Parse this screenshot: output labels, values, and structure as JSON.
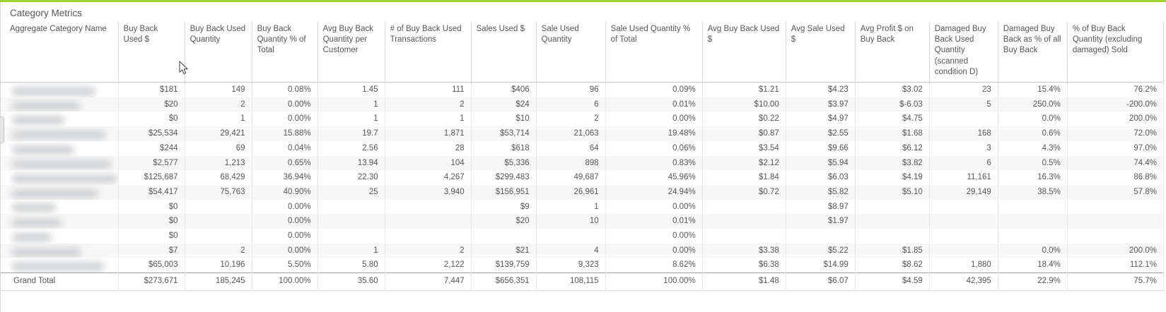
{
  "panel": {
    "title": "Category Metrics",
    "accent_color": "#9cd230"
  },
  "table": {
    "first_column_redacted": true,
    "columns": [
      "Aggregate Category Name",
      "Buy Back Used $",
      "Buy Back Used Quantity",
      "Buy Back Quantity % of Total",
      "Avg Buy Back Quantity per Customer",
      "# of Buy Back Used Transactions",
      "Sales Used $",
      "Sale Used Quantity",
      "Sale Used Quantity % of Total",
      "Avg Buy Back Used $",
      "Avg Sale Used $",
      "Avg Profit $ on Buy Back",
      "Damaged Buy Back Used Quantity (scanned condition D)",
      "Damaged Buy Back as % of all Buy Back",
      "% of Buy Back Quantity (excluding damaged) Sold"
    ],
    "rows": [
      [
        "$181",
        "149",
        "0.08%",
        "1.45",
        "111",
        "$406",
        "96",
        "0.09%",
        "$1.21",
        "$4.23",
        "$3.02",
        "23",
        "15.4%",
        "76.2%"
      ],
      [
        "$20",
        "2",
        "0.00%",
        "1",
        "2",
        "$24",
        "6",
        "0.01%",
        "$10.00",
        "$3.97",
        "$-6.03",
        "5",
        "250.0%",
        "-200.0%"
      ],
      [
        "$0",
        "1",
        "0.00%",
        "1",
        "1",
        "$10",
        "2",
        "0.00%",
        "$0.22",
        "$4.97",
        "$4.75",
        "",
        "0.0%",
        "200.0%"
      ],
      [
        "$25,534",
        "29,421",
        "15.88%",
        "19.7",
        "1,871",
        "$53,714",
        "21,063",
        "19.48%",
        "$0.87",
        "$2.55",
        "$1.68",
        "168",
        "0.6%",
        "72.0%"
      ],
      [
        "$244",
        "69",
        "0.04%",
        "2.56",
        "28",
        "$618",
        "64",
        "0.06%",
        "$3.54",
        "$9.66",
        "$6.12",
        "3",
        "4.3%",
        "97.0%"
      ],
      [
        "$2,577",
        "1,213",
        "0.65%",
        "13.94",
        "104",
        "$5,336",
        "898",
        "0.83%",
        "$2.12",
        "$5.94",
        "$3.82",
        "6",
        "0.5%",
        "74.4%"
      ],
      [
        "$125,687",
        "68,429",
        "36.94%",
        "22.30",
        "4,267",
        "$299,483",
        "49,687",
        "45.96%",
        "$1.84",
        "$6.03",
        "$4.19",
        "11,161",
        "16.3%",
        "86.8%"
      ],
      [
        "$54,417",
        "75,763",
        "40.90%",
        "25",
        "3,940",
        "$156,951",
        "26,961",
        "24.94%",
        "$0.72",
        "$5.82",
        "$5.10",
        "29,149",
        "38.5%",
        "57.8%"
      ],
      [
        "$0",
        "",
        "0.00%",
        "",
        "",
        "$9",
        "1",
        "0.00%",
        "",
        "$8.97",
        "",
        "",
        "",
        ""
      ],
      [
        "$0",
        "",
        "0.00%",
        "",
        "",
        "$20",
        "10",
        "0.01%",
        "",
        "$1.97",
        "",
        "",
        "",
        ""
      ],
      [
        "$0",
        "",
        "0.00%",
        "",
        "",
        "",
        "",
        "0.00%",
        "",
        "",
        "",
        "",
        "",
        ""
      ],
      [
        "$7",
        "2",
        "0.00%",
        "1",
        "2",
        "$21",
        "4",
        "0.00%",
        "$3.38",
        "$5.22",
        "$1.85",
        "",
        "0.0%",
        "200.0%"
      ],
      [
        "$65,003",
        "10,196",
        "5.50%",
        "5.80",
        "2,122",
        "$139,759",
        "9,323",
        "8.62%",
        "$6.38",
        "$14.99",
        "$8.62",
        "1,880",
        "18.4%",
        "112.1%"
      ]
    ],
    "grand_total": {
      "label": "Grand Total",
      "values": [
        "$273,671",
        "185,245",
        "100.00%",
        "35.60",
        "7,447",
        "$656,351",
        "108,115",
        "100.00%",
        "$1.48",
        "$6.07",
        "$4.59",
        "42,395",
        "22.9%",
        "75.7%"
      ]
    }
  }
}
